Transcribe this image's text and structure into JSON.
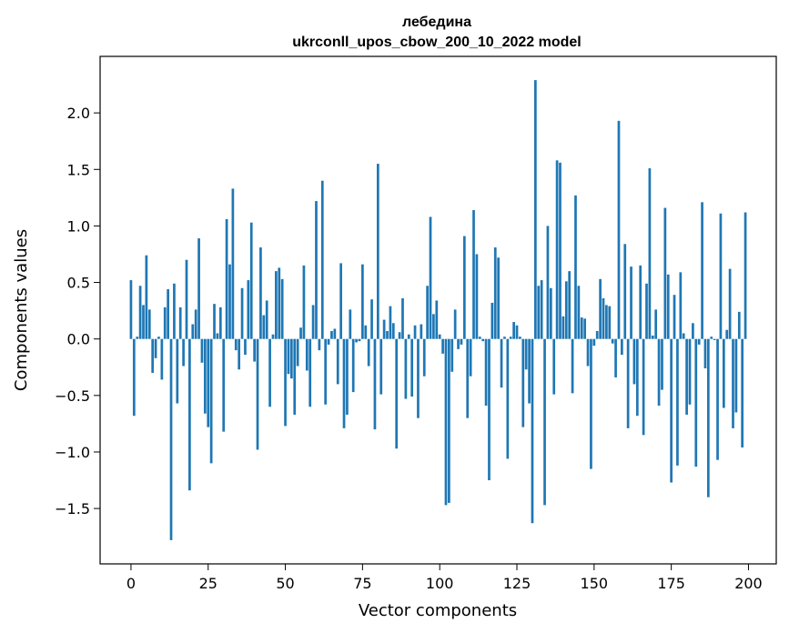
{
  "chart_data": {
    "type": "bar",
    "title": "лебедина",
    "subtitle": "ukrconll_upos_cbow_200_10_2022 model",
    "xlabel": "Vector components",
    "ylabel": "Components values",
    "xlim": [
      -10,
      209
    ],
    "ylim": [
      -1.99,
      2.5
    ],
    "xticks": [
      0,
      25,
      50,
      75,
      100,
      125,
      150,
      175,
      200
    ],
    "yticks": [
      -1.5,
      -1.0,
      -0.5,
      0.0,
      0.5,
      1.0,
      1.5,
      2.0
    ],
    "ytick_labels": [
      "−1.5",
      "−1.0",
      "−0.5",
      "0.0",
      "0.5",
      "1.0",
      "1.5",
      "2.0"
    ],
    "grid": false,
    "bar_color": "#1f77b4",
    "values": [
      0.52,
      -0.68,
      0.02,
      0.47,
      0.3,
      0.74,
      0.26,
      -0.3,
      -0.17,
      0.02,
      -0.36,
      0.28,
      0.44,
      -1.78,
      0.49,
      -0.57,
      0.28,
      -0.24,
      0.7,
      -1.34,
      0.13,
      0.26,
      0.89,
      -0.21,
      -0.66,
      -0.78,
      -1.1,
      0.31,
      0.05,
      0.28,
      -0.82,
      1.06,
      0.66,
      1.33,
      -0.1,
      -0.27,
      0.45,
      -0.14,
      0.52,
      1.03,
      -0.2,
      -0.98,
      0.81,
      0.21,
      0.34,
      -0.6,
      0.04,
      0.6,
      0.63,
      0.53,
      -0.77,
      -0.31,
      -0.35,
      -0.67,
      -0.24,
      0.1,
      0.65,
      -0.28,
      -0.6,
      0.3,
      1.22,
      -0.1,
      1.4,
      -0.58,
      -0.05,
      0.07,
      0.09,
      -0.4,
      0.67,
      -0.79,
      -0.67,
      0.26,
      -0.47,
      -0.03,
      -0.02,
      0.66,
      0.12,
      -0.24,
      0.35,
      -0.8,
      1.55,
      -0.49,
      0.17,
      0.07,
      0.29,
      0.14,
      -0.97,
      0.06,
      0.36,
      -0.53,
      0.04,
      -0.51,
      0.12,
      -0.7,
      0.13,
      -0.33,
      0.47,
      1.08,
      0.22,
      0.34,
      0.04,
      -0.13,
      -1.47,
      -1.45,
      -0.29,
      0.26,
      -0.09,
      -0.05,
      0.91,
      -0.7,
      -0.33,
      1.14,
      0.75,
      0.02,
      -0.02,
      -0.59,
      -1.25,
      0.32,
      0.81,
      0.72,
      -0.43,
      0.02,
      -1.06,
      0.02,
      0.15,
      0.12,
      0.02,
      -0.78,
      -0.27,
      -0.57,
      -1.63,
      2.29,
      0.47,
      0.52,
      -1.47,
      1.0,
      0.45,
      -0.49,
      1.58,
      1.56,
      0.2,
      0.51,
      0.6,
      -0.48,
      1.27,
      0.47,
      0.19,
      0.18,
      -0.24,
      -1.15,
      -0.06,
      0.07,
      0.53,
      0.36,
      0.3,
      0.29,
      -0.04,
      -0.34,
      1.93,
      -0.14,
      0.84,
      -0.79,
      0.64,
      -0.4,
      -0.68,
      0.65,
      -0.85,
      0.49,
      1.51,
      0.03,
      0.26,
      -0.59,
      -0.45,
      1.16,
      0.57,
      -1.27,
      0.39,
      -1.12,
      0.59,
      0.05,
      -0.67,
      -0.58,
      0.14,
      -1.13,
      -0.05,
      1.21,
      -0.26,
      -1.4,
      0.02,
      -0.01,
      -1.07,
      1.11,
      -0.61,
      0.08,
      0.62,
      -0.79,
      -0.65,
      0.24,
      -0.96,
      1.12
    ]
  }
}
